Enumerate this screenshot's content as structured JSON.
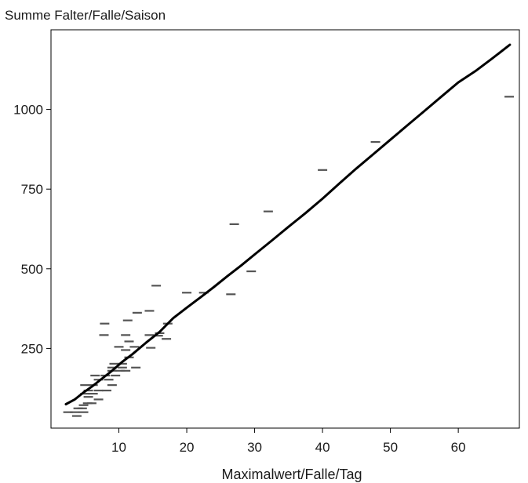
{
  "chart_data": {
    "type": "scatter",
    "title": "",
    "xlabel": "Maximalwert/Falle/Tag",
    "ylabel": "Summe Falter/Falle/Saison",
    "xlim": [
      0,
      69
    ],
    "ylim": [
      0,
      1250
    ],
    "x_ticks": [
      10,
      20,
      30,
      40,
      50,
      60
    ],
    "y_ticks": [
      250,
      500,
      750,
      1000
    ],
    "grid": false,
    "legend": "none",
    "colors": {
      "points": "#555555",
      "fit_line": "#000000",
      "axes": "#000000"
    },
    "series": [
      {
        "marker": "dash",
        "points": [
          [
            2.5,
            50
          ],
          [
            3.5,
            50
          ],
          [
            4.8,
            50
          ],
          [
            3.8,
            38
          ],
          [
            4.0,
            62
          ],
          [
            4.6,
            62
          ],
          [
            4.8,
            72
          ],
          [
            5.4,
            78
          ],
          [
            6.0,
            78
          ],
          [
            5.5,
            98
          ],
          [
            7.0,
            90
          ],
          [
            5.0,
            108
          ],
          [
            6.2,
            108
          ],
          [
            5.5,
            118
          ],
          [
            7.0,
            118
          ],
          [
            8.2,
            118
          ],
          [
            5.0,
            135
          ],
          [
            6.2,
            135
          ],
          [
            9.0,
            135
          ],
          [
            7.0,
            152
          ],
          [
            8.5,
            152
          ],
          [
            6.5,
            165
          ],
          [
            8.0,
            165
          ],
          [
            9.5,
            165
          ],
          [
            9.0,
            180
          ],
          [
            10.2,
            180
          ],
          [
            11.0,
            180
          ],
          [
            9.0,
            190
          ],
          [
            10.5,
            190
          ],
          [
            12.5,
            190
          ],
          [
            9.3,
            202
          ],
          [
            10.5,
            202
          ],
          [
            11.5,
            222
          ],
          [
            10.0,
            255
          ],
          [
            11.0,
            245
          ],
          [
            11.5,
            272
          ],
          [
            12.3,
            255
          ],
          [
            7.8,
            292
          ],
          [
            11.0,
            292
          ],
          [
            14.5,
            292
          ],
          [
            16.0,
            298
          ],
          [
            14.7,
            252
          ],
          [
            7.9,
            328
          ],
          [
            11.3,
            338
          ],
          [
            17.2,
            328
          ],
          [
            15.8,
            290
          ],
          [
            17.0,
            280
          ],
          [
            12.7,
            362
          ],
          [
            14.5,
            368
          ],
          [
            15.5,
            447
          ],
          [
            20.0,
            425
          ],
          [
            22.5,
            425
          ],
          [
            26.5,
            420
          ],
          [
            29.5,
            492
          ],
          [
            27.0,
            640
          ],
          [
            32.0,
            680
          ],
          [
            40.0,
            810
          ],
          [
            47.8,
            898
          ],
          [
            67.5,
            1040
          ]
        ]
      }
    ],
    "fit_line": {
      "x": [
        2.2,
        3.5,
        4.8,
        6.0,
        7.5,
        9.0,
        10.5,
        12.0,
        14.0,
        16.0,
        18.0,
        20.0,
        22.0,
        24.0,
        26.0,
        28.0,
        30.0,
        32.5,
        35.0,
        37.5,
        40.0,
        42.5,
        45.0,
        47.5,
        50.0,
        52.5,
        55.0,
        57.5,
        60.0,
        62.5,
        65.0,
        67.6
      ],
      "y": [
        75,
        90,
        112,
        130,
        155,
        180,
        208,
        232,
        268,
        302,
        345,
        378,
        410,
        443,
        477,
        510,
        545,
        588,
        632,
        675,
        720,
        768,
        815,
        860,
        905,
        950,
        995,
        1040,
        1085,
        1120,
        1160,
        1203
      ]
    }
  }
}
